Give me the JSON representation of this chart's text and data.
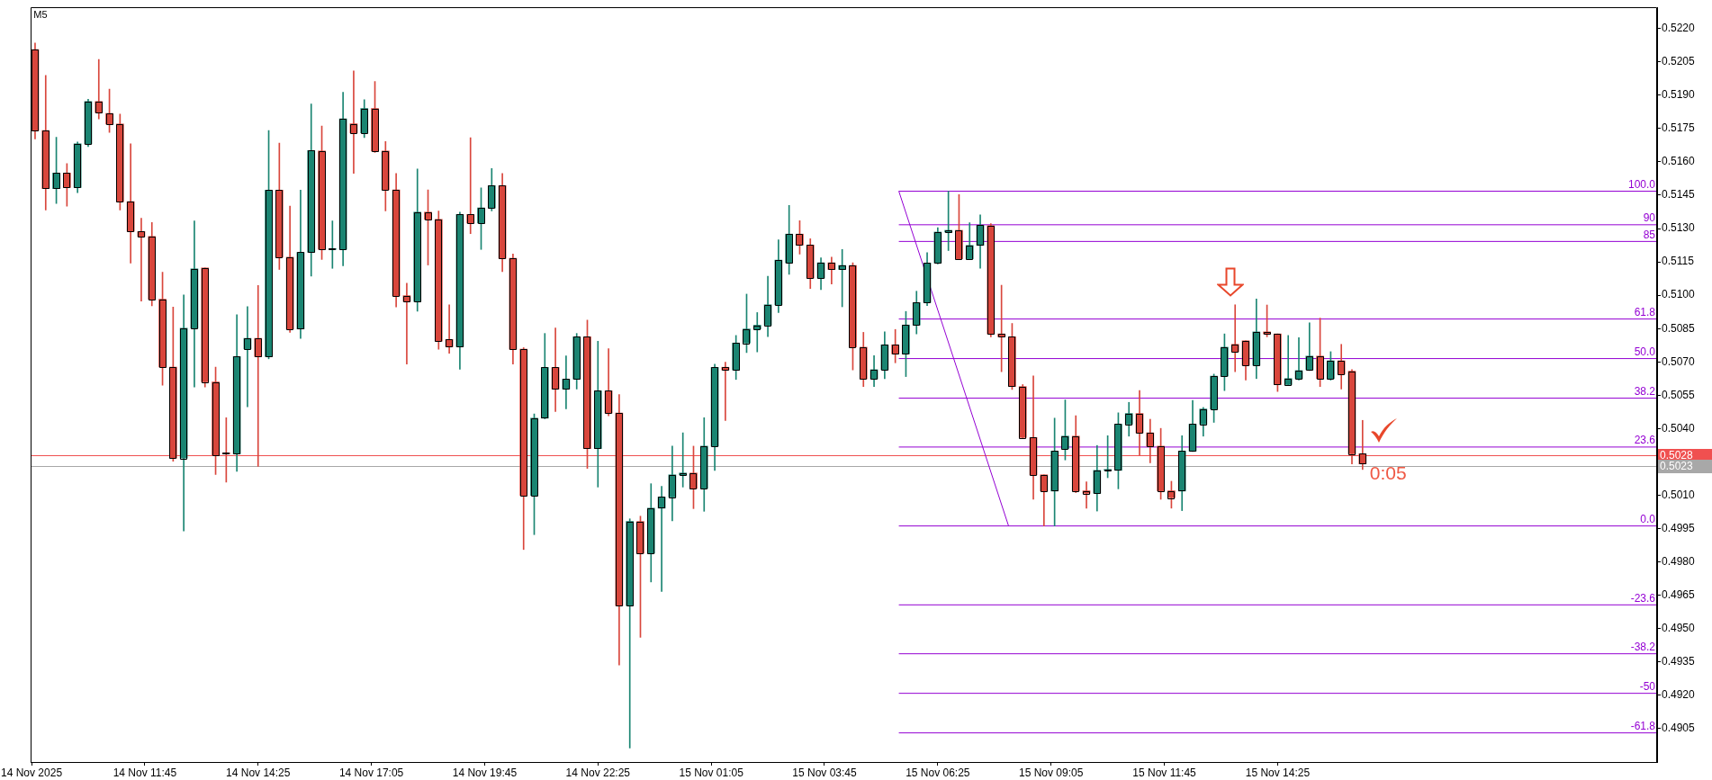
{
  "chart_data": {
    "type": "candlestick",
    "title": "M5",
    "x": [
      "2025-11-14T09:10",
      "2025-11-14T09:25",
      "2025-11-14T09:40",
      "2025-11-14T09:55",
      "2025-11-14T10:10",
      "2025-11-14T10:25",
      "2025-11-14T10:40",
      "2025-11-14T10:55",
      "2025-11-14T11:10",
      "2025-11-14T11:25",
      "2025-11-14T11:40",
      "2025-11-14T11:55",
      "2025-11-14T12:10",
      "2025-11-14T12:25",
      "2025-11-14T12:40",
      "2025-11-14T12:55",
      "2025-11-14T13:10",
      "2025-11-14T13:25",
      "2025-11-14T13:40",
      "2025-11-14T13:55",
      "2025-11-14T14:10",
      "2025-11-14T14:25",
      "2025-11-14T14:40",
      "2025-11-14T14:55",
      "2025-11-14T15:10",
      "2025-11-14T15:25",
      "2025-11-14T15:40",
      "2025-11-14T15:55",
      "2025-11-14T16:10",
      "2025-11-14T16:25",
      "2025-11-14T16:40",
      "2025-11-14T16:55",
      "2025-11-14T17:10",
      "2025-11-14T17:25",
      "2025-11-14T17:40",
      "2025-11-14T17:55",
      "2025-11-14T18:10",
      "2025-11-14T18:25",
      "2025-11-14T18:40",
      "2025-11-14T18:55",
      "2025-11-14T19:10",
      "2025-11-14T19:25",
      "2025-11-14T19:40",
      "2025-11-14T19:55",
      "2025-11-14T20:10",
      "2025-11-14T20:25",
      "2025-11-14T20:40",
      "2025-11-14T20:55",
      "2025-11-14T21:10",
      "2025-11-14T21:25",
      "2025-11-14T21:40",
      "2025-11-14T21:55",
      "2025-11-14T22:10",
      "2025-11-14T22:25",
      "2025-11-14T22:40",
      "2025-11-14T22:55",
      "2025-11-14T23:10",
      "2025-11-14T23:25",
      "2025-11-14T23:40",
      "2025-11-14T23:55",
      "2025-11-15T00:10",
      "2025-11-15T00:25",
      "2025-11-15T00:40",
      "2025-11-15T00:55",
      "2025-11-15T01:10",
      "2025-11-15T01:25",
      "2025-11-15T01:40",
      "2025-11-15T01:55",
      "2025-11-15T02:10",
      "2025-11-15T02:25",
      "2025-11-15T02:40",
      "2025-11-15T02:55",
      "2025-11-15T03:10",
      "2025-11-15T03:25",
      "2025-11-15T03:40",
      "2025-11-15T03:55",
      "2025-11-15T04:10",
      "2025-11-15T04:25",
      "2025-11-15T04:40",
      "2025-11-15T04:55",
      "2025-11-15T05:10",
      "2025-11-15T05:25",
      "2025-11-15T05:40",
      "2025-11-15T05:55",
      "2025-11-15T06:10",
      "2025-11-15T06:25",
      "2025-11-15T06:40",
      "2025-11-15T06:55",
      "2025-11-15T07:10",
      "2025-11-15T07:25",
      "2025-11-15T07:40",
      "2025-11-15T07:55",
      "2025-11-15T08:10",
      "2025-11-15T08:25",
      "2025-11-15T08:40",
      "2025-11-15T08:55",
      "2025-11-15T09:10",
      "2025-11-15T09:25",
      "2025-11-15T09:40",
      "2025-11-15T09:55",
      "2025-11-15T10:10",
      "2025-11-15T10:25",
      "2025-11-15T10:40",
      "2025-11-15T10:55",
      "2025-11-15T11:10",
      "2025-11-15T11:25",
      "2025-11-15T11:40",
      "2025-11-15T11:55",
      "2025-11-15T12:10",
      "2025-11-15T12:25",
      "2025-11-15T12:40",
      "2025-11-15T12:55",
      "2025-11-15T13:10",
      "2025-11-15T13:25",
      "2025-11-15T13:40",
      "2025-11-15T13:55",
      "2025-11-15T14:10",
      "2025-11-15T14:25",
      "2025-11-15T14:40",
      "2025-11-15T14:55",
      "2025-11-15T15:10",
      "2025-11-15T15:25",
      "2025-11-15T15:40",
      "2025-11-15T15:55",
      "2025-11-15T16:10",
      "2025-11-15T16:25"
    ],
    "ohlc": [
      [
        0.52105,
        0.52135,
        0.51703,
        0.51741
      ],
      [
        0.51741,
        0.51989,
        0.51383,
        0.5148
      ],
      [
        0.5148,
        0.51711,
        0.51413,
        0.5155
      ],
      [
        0.5155,
        0.51592,
        0.51401,
        0.51485
      ],
      [
        0.51485,
        0.51689,
        0.51461,
        0.51681
      ],
      [
        0.51681,
        0.51882,
        0.51669,
        0.51872
      ],
      [
        0.51872,
        0.52061,
        0.51793,
        0.51822
      ],
      [
        0.51818,
        0.51927,
        0.51733,
        0.5177
      ],
      [
        0.5177,
        0.51815,
        0.51383,
        0.51421
      ],
      [
        0.51421,
        0.51681,
        0.51145,
        0.51287
      ],
      [
        0.51287,
        0.51346,
        0.50974,
        0.51264
      ],
      [
        0.51264,
        0.51327,
        0.50952,
        0.50982
      ],
      [
        0.50982,
        0.51104,
        0.50595,
        0.50677
      ],
      [
        0.50677,
        0.50947,
        0.50253,
        0.50267
      ],
      [
        0.50267,
        0.51001,
        0.4994,
        0.50852
      ],
      [
        0.50852,
        0.51334,
        0.50587,
        0.51119
      ],
      [
        0.51123,
        0.51123,
        0.50587,
        0.5061
      ],
      [
        0.5061,
        0.50677,
        0.50193,
        0.50282
      ],
      [
        0.5029,
        0.50449,
        0.50159,
        0.50287
      ],
      [
        0.50287,
        0.50912,
        0.50208,
        0.50724
      ],
      [
        0.50759,
        0.50949,
        0.50498,
        0.50806
      ],
      [
        0.50806,
        0.51044,
        0.5023,
        0.50724
      ],
      [
        0.50724,
        0.51741,
        0.50714,
        0.51473
      ],
      [
        0.51473,
        0.51684,
        0.51116,
        0.51171
      ],
      [
        0.51171,
        0.51401,
        0.50833,
        0.50848
      ],
      [
        0.50848,
        0.51473,
        0.50806,
        0.51193
      ],
      [
        0.51193,
        0.5186,
        0.51086,
        0.51651
      ],
      [
        0.51649,
        0.51761,
        0.51161,
        0.51206
      ],
      [
        0.51206,
        0.51334,
        0.51121,
        0.5121
      ],
      [
        0.51206,
        0.51913,
        0.51132,
        0.51794
      ],
      [
        0.51771,
        0.52009,
        0.51548,
        0.51731
      ],
      [
        0.51731,
        0.5188,
        0.51709,
        0.5184
      ],
      [
        0.5184,
        0.51962,
        0.51642,
        0.51649
      ],
      [
        0.51649,
        0.51691,
        0.51379,
        0.51474
      ],
      [
        0.51474,
        0.51548,
        0.50947,
        0.50998
      ],
      [
        0.50998,
        0.51054,
        0.5069,
        0.50972
      ],
      [
        0.50972,
        0.51568,
        0.50928,
        0.51374
      ],
      [
        0.51374,
        0.51474,
        0.51136,
        0.51341
      ],
      [
        0.51341,
        0.51379,
        0.50757,
        0.50794
      ],
      [
        0.50801,
        0.50957,
        0.50739,
        0.50768
      ],
      [
        0.50768,
        0.51374,
        0.50667,
        0.51364
      ],
      [
        0.51364,
        0.51709,
        0.51277,
        0.51325
      ],
      [
        0.51325,
        0.51483,
        0.51206,
        0.51393
      ],
      [
        0.51393,
        0.5157,
        0.51379,
        0.51493
      ],
      [
        0.51493,
        0.51548,
        0.51106,
        0.51166
      ],
      [
        0.51166,
        0.51185,
        0.5069,
        0.50757
      ],
      [
        0.50757,
        0.50764,
        0.49856,
        0.50099
      ],
      [
        0.50099,
        0.50466,
        0.49923,
        0.50447
      ],
      [
        0.50447,
        0.50828,
        0.50444,
        0.50675
      ],
      [
        0.50675,
        0.50853,
        0.50477,
        0.50578
      ],
      [
        0.50578,
        0.50727,
        0.50489,
        0.50623
      ],
      [
        0.50623,
        0.50828,
        0.50578,
        0.50813
      ],
      [
        0.50813,
        0.50888,
        0.50221,
        0.5031
      ],
      [
        0.5031,
        0.50793,
        0.50137,
        0.5057
      ],
      [
        0.5057,
        0.50759,
        0.50458,
        0.5047
      ],
      [
        0.5047,
        0.50553,
        0.49336,
        0.49604
      ],
      [
        0.49604,
        0.49994,
        0.48963,
        0.49982
      ],
      [
        0.49982,
        0.50006,
        0.49461,
        0.49839
      ],
      [
        0.49839,
        0.50152,
        0.4971,
        0.50042
      ],
      [
        0.50042,
        0.5014,
        0.49667,
        0.50092
      ],
      [
        0.50092,
        0.50321,
        0.49985,
        0.50192
      ],
      [
        0.50192,
        0.50381,
        0.50137,
        0.502
      ],
      [
        0.502,
        0.50321,
        0.5004,
        0.50131
      ],
      [
        0.50131,
        0.50449,
        0.50028,
        0.50321
      ],
      [
        0.50321,
        0.5069,
        0.50212,
        0.50676
      ],
      [
        0.50676,
        0.50699,
        0.50436,
        0.50664
      ],
      [
        0.50664,
        0.50819,
        0.50621,
        0.50785
      ],
      [
        0.50785,
        0.51005,
        0.50742,
        0.50848
      ],
      [
        0.50848,
        0.50922,
        0.50745,
        0.50865
      ],
      [
        0.50865,
        0.51085,
        0.50814,
        0.50957
      ],
      [
        0.50957,
        0.51249,
        0.50922,
        0.51158
      ],
      [
        0.51146,
        0.51404,
        0.51094,
        0.51275
      ],
      [
        0.51275,
        0.51335,
        0.51185,
        0.51226
      ],
      [
        0.51226,
        0.51254,
        0.5103,
        0.51077
      ],
      [
        0.51077,
        0.51168,
        0.51025,
        0.51146
      ],
      [
        0.51146,
        0.51171,
        0.51051,
        0.51116
      ],
      [
        0.51116,
        0.51206,
        0.50948,
        0.51134
      ],
      [
        0.51134,
        0.51146,
        0.50664,
        0.50767
      ],
      [
        0.50766,
        0.50833,
        0.50589,
        0.50624
      ],
      [
        0.50624,
        0.50728,
        0.50589,
        0.50665
      ],
      [
        0.50665,
        0.50835,
        0.50625,
        0.50777
      ],
      [
        0.50777,
        0.50846,
        0.50696,
        0.50736
      ],
      [
        0.50736,
        0.50927,
        0.50634,
        0.50866
      ],
      [
        0.50866,
        0.51018,
        0.50826,
        0.50967
      ],
      [
        0.50967,
        0.51192,
        0.50953,
        0.51145
      ],
      [
        0.51145,
        0.51304,
        0.51141,
        0.51284
      ],
      [
        0.51284,
        0.51468,
        0.51201,
        0.51292
      ],
      [
        0.51292,
        0.51453,
        0.51161,
        0.51164
      ],
      [
        0.51164,
        0.51326,
        0.51161,
        0.51224
      ],
      [
        0.51224,
        0.51362,
        0.51121,
        0.51315
      ],
      [
        0.51313,
        0.51322,
        0.50813,
        0.50826
      ],
      [
        0.50826,
        0.51045,
        0.50656,
        0.50813
      ],
      [
        0.50813,
        0.50873,
        0.50576,
        0.50589
      ],
      [
        0.50589,
        0.50598,
        0.50357,
        0.5036
      ],
      [
        0.5036,
        0.50637,
        0.50082,
        0.50192
      ],
      [
        0.50192,
        0.50192,
        0.49962,
        0.50119
      ],
      [
        0.50119,
        0.50447,
        0.49962,
        0.50299
      ],
      [
        0.5031,
        0.50529,
        0.50259,
        0.50366
      ],
      [
        0.50366,
        0.50458,
        0.50112,
        0.5012
      ],
      [
        0.5012,
        0.5016,
        0.50042,
        0.50109
      ],
      [
        0.50109,
        0.50324,
        0.50029,
        0.50212
      ],
      [
        0.50212,
        0.50368,
        0.50179,
        0.50212
      ],
      [
        0.50212,
        0.50471,
        0.50129,
        0.5042
      ],
      [
        0.5042,
        0.50518,
        0.50366,
        0.50468
      ],
      [
        0.50468,
        0.50571,
        0.50281,
        0.50381
      ],
      [
        0.50381,
        0.50442,
        0.50246,
        0.50321
      ],
      [
        0.50321,
        0.50401,
        0.50082,
        0.5012
      ],
      [
        0.5012,
        0.50163,
        0.50042,
        0.50089
      ],
      [
        0.50119,
        0.50368,
        0.50031,
        0.50299
      ],
      [
        0.50299,
        0.50527,
        0.50297,
        0.5042
      ],
      [
        0.5042,
        0.50495,
        0.50366,
        0.50488
      ],
      [
        0.50488,
        0.50645,
        0.50428,
        0.50636
      ],
      [
        0.50636,
        0.50826,
        0.50571,
        0.50766
      ],
      [
        0.50779,
        0.50957,
        0.50656,
        0.50746
      ],
      [
        0.50795,
        0.50795,
        0.50618,
        0.50685
      ],
      [
        0.50685,
        0.50983,
        0.50625,
        0.50835
      ],
      [
        0.50835,
        0.50956,
        0.50813,
        0.50826
      ],
      [
        0.50826,
        0.50826,
        0.50567,
        0.50598
      ],
      [
        0.50598,
        0.50819,
        0.50594,
        0.50625
      ],
      [
        0.50625,
        0.50809,
        0.50618,
        0.50661
      ],
      [
        0.50665,
        0.50876,
        0.50661,
        0.50726
      ],
      [
        0.50726,
        0.50897,
        0.50589,
        0.50625
      ],
      [
        0.50625,
        0.50746,
        0.50618,
        0.50705
      ],
      [
        0.50705,
        0.50779,
        0.50578,
        0.50645
      ],
      [
        0.50658,
        0.50665,
        0.50241,
        0.50287
      ],
      [
        0.50287,
        0.50437,
        0.50216,
        0.50241
      ]
    ],
    "colors": [
      "#d9463c",
      "#d9463c",
      "#1a8572",
      "#d9463c",
      "#1a8572",
      "#1a8572",
      "#d9463c",
      "#d9463c",
      "#d9463c",
      "#d9463c",
      "#d9463c",
      "#d9463c",
      "#d9463c",
      "#d9463c",
      "#1a8572",
      "#1a8572",
      "#d9463c",
      "#d9463c",
      "#d9463c",
      "#1a8572",
      "#1a8572",
      "#d9463c",
      "#1a8572",
      "#d9463c",
      "#d9463c",
      "#1a8572",
      "#1a8572",
      "#d9463c",
      "#1a8572",
      "#1a8572",
      "#d9463c",
      "#1a8572",
      "#d9463c",
      "#d9463c",
      "#d9463c",
      "#d9463c",
      "#1a8572",
      "#d9463c",
      "#d9463c",
      "#d9463c",
      "#1a8572",
      "#d9463c",
      "#1a8572",
      "#1a8572",
      "#d9463c",
      "#d9463c",
      "#d9463c",
      "#1a8572",
      "#1a8572",
      "#d9463c",
      "#1a8572",
      "#1a8572",
      "#d9463c",
      "#1a8572",
      "#d9463c",
      "#d9463c",
      "#1a8572",
      "#d9463c",
      "#1a8572",
      "#1a8572",
      "#1a8572",
      "#1a8572",
      "#d9463c",
      "#1a8572",
      "#1a8572",
      "#d9463c",
      "#1a8572",
      "#1a8572",
      "#1a8572",
      "#1a8572",
      "#1a8572",
      "#1a8572",
      "#d9463c",
      "#d9463c",
      "#1a8572",
      "#d9463c",
      "#1a8572",
      "#d9463c",
      "#d9463c",
      "#1a8572",
      "#1a8572",
      "#d9463c",
      "#1a8572",
      "#1a8572",
      "#1a8572",
      "#1a8572",
      "#1a8572",
      "#d9463c",
      "#1a8572",
      "#1a8572",
      "#d9463c",
      "#d9463c",
      "#d9463c",
      "#d9463c",
      "#d9463c",
      "#d9463c",
      "#1a8572",
      "#1a8572",
      "#d9463c",
      "#d9463c",
      "#1a8572",
      "#1a8572",
      "#1a8572",
      "#1a8572",
      "#d9463c",
      "#d9463c",
      "#d9463c",
      "#d9463c",
      "#1a8572",
      "#1a8572",
      "#1a8572",
      "#1a8572",
      "#1a8572",
      "#d9463c",
      "#d9463c",
      "#1a8572",
      "#d9463c",
      "#d9463c",
      "#1a8572",
      "#1a8572",
      "#1a8572",
      "#d9463c",
      "#1a8572",
      "#d9463c",
      "#d9463c",
      "#d9463c"
    ],
    "series": [
      {
        "type": "line",
        "name": "100.0",
        "color": "#9400d3",
        "x": [
          "2025-11-15T05:30",
          "2025-11-15T23:21"
        ],
        "values": [
          0.51468,
          0.51468
        ]
      },
      {
        "type": "line",
        "name": "90",
        "color": "#9400d3",
        "x": [
          "2025-11-15T05:30",
          "2025-11-15T23:21"
        ],
        "values": [
          0.51317,
          0.51317
        ]
      },
      {
        "type": "line",
        "name": "85",
        "color": "#9400d3",
        "x": [
          "2025-11-15T05:30",
          "2025-11-15T23:21"
        ],
        "values": [
          0.51242,
          0.51242
        ]
      },
      {
        "type": "line",
        "name": "61.8",
        "color": "#9400d3",
        "x": [
          "2025-11-15T05:30",
          "2025-11-15T23:21"
        ],
        "values": [
          0.50893,
          0.50893
        ]
      },
      {
        "type": "line",
        "name": "50.0",
        "color": "#9400d3",
        "x": [
          "2025-11-15T05:30",
          "2025-11-15T23:21"
        ],
        "values": [
          0.50715,
          0.50715
        ]
      },
      {
        "type": "line",
        "name": "38.2",
        "color": "#9400d3",
        "x": [
          "2025-11-15T05:30",
          "2025-11-15T23:21"
        ],
        "values": [
          0.50537,
          0.50537
        ]
      },
      {
        "type": "line",
        "name": "23.6",
        "color": "#9400d3",
        "x": [
          "2025-11-15T05:30",
          "2025-11-15T23:21"
        ],
        "values": [
          0.50317,
          0.50317
        ]
      },
      {
        "type": "line",
        "name": "0.0",
        "color": "#9400d3",
        "x": [
          "2025-11-15T05:30",
          "2025-11-15T23:21"
        ],
        "values": [
          0.49962,
          0.49962
        ]
      },
      {
        "type": "line",
        "name": "-23.6",
        "color": "#9400d3",
        "x": [
          "2025-11-15T05:30",
          "2025-11-15T23:21"
        ],
        "values": [
          0.49607,
          0.49607
        ]
      },
      {
        "type": "line",
        "name": "-38.2",
        "color": "#9400d3",
        "x": [
          "2025-11-15T05:30",
          "2025-11-15T23:21"
        ],
        "values": [
          0.49387,
          0.49387
        ]
      },
      {
        "type": "line",
        "name": "-50",
        "color": "#9400d3",
        "x": [
          "2025-11-15T05:30",
          "2025-11-15T23:21"
        ],
        "values": [
          0.49209,
          0.49209
        ]
      },
      {
        "type": "line",
        "name": "-61.8",
        "color": "#9400d3",
        "x": [
          "2025-11-15T05:30",
          "2025-11-15T23:21"
        ],
        "values": [
          0.49031,
          0.49031
        ]
      },
      {
        "type": "line",
        "color": "#9400d3",
        "x": [
          "2025-11-15T05:30",
          "2025-11-15T08:05"
        ],
        "values": [
          0.51468,
          0.49962
        ]
      }
    ],
    "marker": "none",
    "ref_lines": [
      {
        "axis": "y",
        "value": 0.5028,
        "label": "0.5028",
        "color": "#f05050"
      },
      {
        "axis": "y",
        "value": 0.5023,
        "label": "0.5023",
        "color": "#a8a8a8"
      }
    ],
    "annotations": [
      "0:05"
    ],
    "xlim": [
      "2025-11-14T09:04",
      "2025-11-15T23:21"
    ],
    "xticks": [
      {
        "value": "2025-11-14T09:05",
        "label": "14 Nov 2025"
      },
      {
        "value": "2025-11-14T11:45",
        "label": "14 Nov 11:45"
      },
      {
        "value": "2025-11-14T14:25",
        "label": "14 Nov 14:25"
      },
      {
        "value": "2025-11-14T17:05",
        "label": "14 Nov 17:05"
      },
      {
        "value": "2025-11-14T19:45",
        "label": "14 Nov 19:45"
      },
      {
        "value": "2025-11-14T22:25",
        "label": "14 Nov 22:25"
      },
      {
        "value": "2025-11-15T01:05",
        "label": "15 Nov 01:05"
      },
      {
        "value": "2025-11-15T03:45",
        "label": "15 Nov 03:45"
      },
      {
        "value": "2025-11-15T06:25",
        "label": "15 Nov 06:25"
      },
      {
        "value": "2025-11-15T09:05",
        "label": "15 Nov 09:05"
      },
      {
        "value": "2025-11-15T11:45",
        "label": "15 Nov 11:45"
      },
      {
        "value": "2025-11-15T14:25",
        "label": "15 Nov 14:25"
      }
    ],
    "ylim": [
      0.489,
      0.52295
    ],
    "yticks": [
      0.4905,
      {
        "value": 0.492,
        "label": "0.4920"
      },
      0.4935,
      {
        "value": 0.495,
        "label": "0.4950"
      },
      0.4965,
      {
        "value": 0.498,
        "label": "0.4980"
      },
      0.4995,
      {
        "value": 0.501,
        "label": "0.5010"
      },
      {
        "value": 0.504,
        "label": "0.5040"
      },
      0.5055,
      {
        "value": 0.507,
        "label": "0.5070"
      },
      0.5085,
      {
        "value": 0.51,
        "label": "0.5100"
      },
      0.5115,
      {
        "value": 0.513,
        "label": "0.5130"
      },
      0.5145,
      {
        "value": 0.516,
        "label": "0.5160"
      },
      0.5175,
      {
        "value": 0.519,
        "label": "0.5190"
      },
      0.5205,
      {
        "value": 0.522,
        "label": "0.5220"
      }
    ]
  }
}
